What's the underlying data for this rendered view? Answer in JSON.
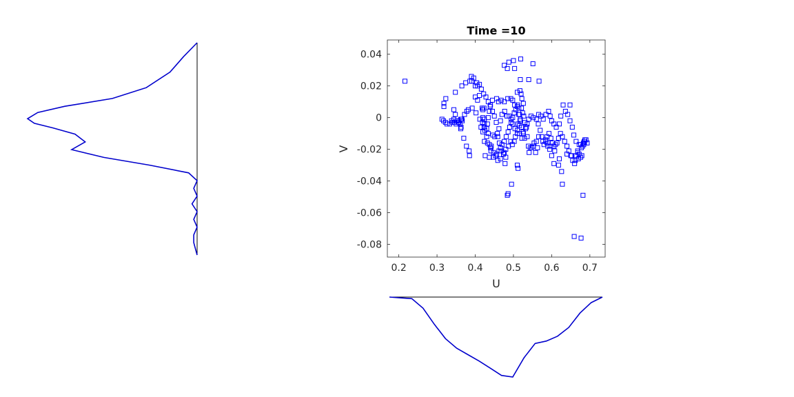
{
  "chart_data": [
    {
      "type": "scatter",
      "title": "Time =10",
      "xlabel": "U",
      "ylabel": "V",
      "xlim": [
        0.17,
        0.74
      ],
      "ylim": [
        -0.088,
        0.049
      ],
      "xticks": [
        "0.2",
        "0.3",
        "0.4",
        "0.5",
        "0.6",
        "0.7"
      ],
      "xtick_values": [
        0.2,
        0.3,
        0.4,
        0.5,
        0.6,
        0.7
      ],
      "yticks": [
        "-0.08",
        "-0.06",
        "-0.04",
        "-0.02",
        "0",
        "0.02",
        "0.04"
      ],
      "ytick_values": [
        -0.08,
        -0.06,
        -0.04,
        -0.02,
        0,
        0.02,
        0.04
      ],
      "marker": "square",
      "grid": false,
      "color": "#0000ff",
      "points": [
        [
          0.216,
          0.023
        ],
        [
          0.318,
          0.009
        ],
        [
          0.323,
          0.012
        ],
        [
          0.318,
          0.007
        ],
        [
          0.313,
          -0.001
        ],
        [
          0.317,
          -0.002
        ],
        [
          0.322,
          -0.003
        ],
        [
          0.326,
          -0.004
        ],
        [
          0.333,
          -0.004
        ],
        [
          0.34,
          -0.003
        ],
        [
          0.346,
          -0.003
        ],
        [
          0.35,
          -0.004
        ],
        [
          0.355,
          -0.003
        ],
        [
          0.358,
          -0.002
        ],
        [
          0.362,
          -0.001
        ],
        [
          0.364,
          -0.001
        ],
        [
          0.365,
          -0.001
        ],
        [
          0.362,
          -0.007
        ],
        [
          0.363,
          -0.006
        ],
        [
          0.37,
          -0.013
        ],
        [
          0.377,
          -0.018
        ],
        [
          0.384,
          -0.021
        ],
        [
          0.385,
          -0.024
        ],
        [
          0.348,
          0.016
        ],
        [
          0.365,
          0.02
        ],
        [
          0.375,
          0.022
        ],
        [
          0.386,
          0.023
        ],
        [
          0.391,
          0.023
        ],
        [
          0.39,
          0.026
        ],
        [
          0.396,
          0.025
        ],
        [
          0.4,
          0.02
        ],
        [
          0.406,
          0.02
        ],
        [
          0.344,
          0.005
        ],
        [
          0.348,
          0.002
        ],
        [
          0.378,
          0.004
        ],
        [
          0.4,
          0.013
        ],
        [
          0.406,
          0.011
        ],
        [
          0.411,
          0.014
        ],
        [
          0.418,
          0.006
        ],
        [
          0.42,
          0.005
        ],
        [
          0.423,
          0.006
        ],
        [
          0.42,
          0.0
        ],
        [
          0.424,
          -0.001
        ],
        [
          0.419,
          -0.003
        ],
        [
          0.424,
          -0.004
        ],
        [
          0.423,
          -0.006
        ],
        [
          0.425,
          -0.008
        ],
        [
          0.42,
          -0.009
        ],
        [
          0.43,
          -0.012
        ],
        [
          0.424,
          -0.015
        ],
        [
          0.437,
          -0.017
        ],
        [
          0.441,
          -0.021
        ],
        [
          0.442,
          -0.018
        ],
        [
          0.437,
          -0.025
        ],
        [
          0.426,
          -0.024
        ],
        [
          0.447,
          -0.025
        ],
        [
          0.453,
          -0.024
        ],
        [
          0.459,
          -0.027
        ],
        [
          0.466,
          -0.026
        ],
        [
          0.474,
          -0.023
        ],
        [
          0.478,
          -0.029
        ],
        [
          0.476,
          -0.022
        ],
        [
          0.48,
          -0.02
        ],
        [
          0.487,
          -0.018
        ],
        [
          0.493,
          -0.015
        ],
        [
          0.497,
          -0.017
        ],
        [
          0.502,
          -0.015
        ],
        [
          0.505,
          -0.012
        ],
        [
          0.51,
          -0.01
        ],
        [
          0.512,
          -0.004
        ],
        [
          0.516,
          -0.005
        ],
        [
          0.518,
          -0.001
        ],
        [
          0.516,
          0.002
        ],
        [
          0.514,
          0.006
        ],
        [
          0.51,
          0.007
        ],
        [
          0.503,
          0.008
        ],
        [
          0.498,
          0.011
        ],
        [
          0.493,
          0.012
        ],
        [
          0.485,
          0.012
        ],
        [
          0.476,
          0.01
        ],
        [
          0.468,
          0.011
        ],
        [
          0.461,
          0.01
        ],
        [
          0.456,
          0.012
        ],
        [
          0.445,
          0.011
        ],
        [
          0.44,
          0.008
        ],
        [
          0.437,
          0.004
        ],
        [
          0.434,
          0.0
        ],
        [
          0.432,
          -0.004
        ],
        [
          0.43,
          -0.007
        ],
        [
          0.434,
          -0.01
        ],
        [
          0.446,
          -0.011
        ],
        [
          0.451,
          -0.012
        ],
        [
          0.458,
          -0.01
        ],
        [
          0.462,
          -0.007
        ],
        [
          0.466,
          -0.002
        ],
        [
          0.47,
          0.002
        ],
        [
          0.477,
          0.004
        ],
        [
          0.483,
          0.001
        ],
        [
          0.489,
          0.001
        ],
        [
          0.494,
          -0.001
        ],
        [
          0.498,
          -0.004
        ],
        [
          0.504,
          -0.007
        ],
        [
          0.51,
          -0.008
        ],
        [
          0.516,
          -0.01
        ],
        [
          0.522,
          -0.013
        ],
        [
          0.526,
          -0.01
        ],
        [
          0.532,
          -0.007
        ],
        [
          0.536,
          -0.004
        ],
        [
          0.54,
          -0.001
        ],
        [
          0.546,
          0.001
        ],
        [
          0.552,
          0.0
        ],
        [
          0.56,
          -0.001
        ],
        [
          0.565,
          -0.004
        ],
        [
          0.57,
          -0.008
        ],
        [
          0.574,
          -0.012
        ],
        [
          0.577,
          -0.015
        ],
        [
          0.58,
          -0.017
        ],
        [
          0.584,
          -0.015
        ],
        [
          0.588,
          -0.012
        ],
        [
          0.593,
          -0.01
        ],
        [
          0.598,
          -0.013
        ],
        [
          0.602,
          -0.016
        ],
        [
          0.606,
          -0.018
        ],
        [
          0.61,
          -0.017
        ],
        [
          0.614,
          -0.016
        ],
        [
          0.618,
          -0.013
        ],
        [
          0.623,
          -0.01
        ],
        [
          0.628,
          -0.012
        ],
        [
          0.634,
          -0.015
        ],
        [
          0.64,
          -0.018
        ],
        [
          0.645,
          -0.021
        ],
        [
          0.65,
          -0.024
        ],
        [
          0.655,
          -0.027
        ],
        [
          0.66,
          -0.029
        ],
        [
          0.664,
          -0.024
        ],
        [
          0.668,
          -0.022
        ],
        [
          0.672,
          -0.023
        ],
        [
          0.676,
          -0.025
        ],
        [
          0.679,
          -0.024
        ],
        [
          0.681,
          -0.018
        ],
        [
          0.683,
          -0.016
        ],
        [
          0.685,
          -0.015
        ],
        [
          0.687,
          -0.014
        ],
        [
          0.682,
          -0.049
        ],
        [
          0.686,
          -0.016
        ],
        [
          0.676,
          -0.017
        ],
        [
          0.672,
          -0.017
        ],
        [
          0.668,
          -0.021
        ],
        [
          0.664,
          -0.015
        ],
        [
          0.658,
          -0.011
        ],
        [
          0.654,
          -0.006
        ],
        [
          0.648,
          -0.002
        ],
        [
          0.642,
          0.002
        ],
        [
          0.636,
          0.004
        ],
        [
          0.63,
          0.008
        ],
        [
          0.648,
          0.008
        ],
        [
          0.624,
          0.001
        ],
        [
          0.62,
          -0.004
        ],
        [
          0.612,
          -0.006
        ],
        [
          0.606,
          -0.004
        ],
        [
          0.6,
          -0.002
        ],
        [
          0.596,
          0.001
        ],
        [
          0.592,
          0.004
        ],
        [
          0.585,
          0.002
        ],
        [
          0.578,
          -0.001
        ],
        [
          0.572,
          0.001
        ],
        [
          0.566,
          0.002
        ],
        [
          0.62,
          -0.026
        ],
        [
          0.618,
          -0.03
        ],
        [
          0.626,
          -0.034
        ],
        [
          0.628,
          -0.042
        ],
        [
          0.606,
          -0.029
        ],
        [
          0.6,
          -0.024
        ],
        [
          0.595,
          -0.02
        ],
        [
          0.59,
          -0.018
        ],
        [
          0.588,
          -0.016
        ],
        [
          0.54,
          0.024
        ],
        [
          0.551,
          0.034
        ],
        [
          0.567,
          0.023
        ],
        [
          0.519,
          0.037
        ],
        [
          0.5,
          0.036
        ],
        [
          0.488,
          0.035
        ],
        [
          0.476,
          0.033
        ],
        [
          0.484,
          0.031
        ],
        [
          0.503,
          0.031
        ],
        [
          0.518,
          0.024
        ],
        [
          0.51,
          0.016
        ],
        [
          0.517,
          0.017
        ],
        [
          0.52,
          0.015
        ],
        [
          0.522,
          0.012
        ],
        [
          0.526,
          0.009
        ],
        [
          0.521,
          0.006
        ],
        [
          0.524,
          0.003
        ],
        [
          0.527,
          0.001
        ],
        [
          0.53,
          -0.003
        ],
        [
          0.534,
          -0.006
        ],
        [
          0.536,
          -0.012
        ],
        [
          0.539,
          -0.018
        ],
        [
          0.541,
          -0.022
        ],
        [
          0.552,
          -0.018
        ],
        [
          0.56,
          -0.015
        ],
        [
          0.563,
          -0.019
        ],
        [
          0.558,
          -0.022
        ],
        [
          0.548,
          -0.019
        ],
        [
          0.51,
          -0.03
        ],
        [
          0.512,
          -0.032
        ],
        [
          0.495,
          -0.042
        ],
        [
          0.486,
          -0.048
        ],
        [
          0.484,
          -0.049
        ],
        [
          0.48,
          -0.025
        ],
        [
          0.474,
          -0.023
        ],
        [
          0.468,
          -0.021
        ],
        [
          0.463,
          -0.016
        ],
        [
          0.459,
          -0.012
        ],
        [
          0.455,
          -0.003
        ],
        [
          0.45,
          0.001
        ],
        [
          0.445,
          0.004
        ],
        [
          0.439,
          0.007
        ],
        [
          0.434,
          0.01
        ],
        [
          0.428,
          0.013
        ],
        [
          0.422,
          0.015
        ],
        [
          0.416,
          0.018
        ],
        [
          0.411,
          0.021
        ],
        [
          0.404,
          0.022
        ],
        [
          0.659,
          -0.075
        ],
        [
          0.677,
          -0.076
        ],
        [
          0.456,
          -0.023
        ],
        [
          0.462,
          -0.021
        ],
        [
          0.466,
          -0.019
        ],
        [
          0.47,
          -0.017
        ],
        [
          0.476,
          -0.015
        ],
        [
          0.481,
          -0.012
        ],
        [
          0.486,
          -0.009
        ],
        [
          0.49,
          -0.006
        ],
        [
          0.494,
          -0.003
        ],
        [
          0.498,
          0.0
        ],
        [
          0.502,
          0.003
        ],
        [
          0.506,
          0.005
        ],
        [
          0.511,
          0.008
        ],
        [
          0.514,
          0.002
        ],
        [
          0.517,
          -0.002
        ],
        [
          0.521,
          -0.006
        ],
        [
          0.525,
          -0.009
        ],
        [
          0.529,
          -0.013
        ],
        [
          0.544,
          -0.019
        ],
        [
          0.554,
          -0.016
        ],
        [
          0.566,
          -0.012
        ],
        [
          0.584,
          -0.014
        ],
        [
          0.596,
          -0.018
        ],
        [
          0.608,
          -0.021
        ],
        [
          0.64,
          -0.023
        ],
        [
          0.652,
          -0.024
        ],
        [
          0.662,
          -0.027
        ],
        [
          0.67,
          -0.026
        ],
        [
          0.678,
          -0.019
        ],
        [
          0.684,
          -0.017
        ],
        [
          0.69,
          -0.014
        ],
        [
          0.693,
          -0.016
        ],
        [
          0.338,
          -0.002
        ],
        [
          0.344,
          -0.001
        ],
        [
          0.352,
          -0.002
        ],
        [
          0.356,
          -0.003
        ],
        [
          0.36,
          -0.004
        ],
        [
          0.366,
          -0.002
        ],
        [
          0.372,
          0.002
        ],
        [
          0.382,
          0.005
        ],
        [
          0.392,
          0.006
        ],
        [
          0.402,
          0.003
        ],
        [
          0.412,
          -0.001
        ],
        [
          0.415,
          -0.006
        ],
        [
          0.432,
          -0.016
        ],
        [
          0.44,
          -0.019
        ],
        [
          0.448,
          -0.022
        ]
      ]
    },
    {
      "type": "line",
      "description_role": "marginal density of U (shown below the scatter plot, drawn downward)",
      "axis": "U",
      "x": [
        0.17,
        0.2,
        0.23,
        0.26,
        0.29,
        0.32,
        0.35,
        0.38,
        0.41,
        0.44,
        0.47,
        0.5,
        0.53,
        0.56,
        0.59,
        0.62,
        0.65,
        0.68,
        0.71,
        0.74
      ],
      "values": [
        0.0,
        0.01,
        0.02,
        0.14,
        0.34,
        0.52,
        0.64,
        0.72,
        0.8,
        0.89,
        0.98,
        1.0,
        0.76,
        0.58,
        0.55,
        0.49,
        0.38,
        0.2,
        0.07,
        0.0
      ]
    },
    {
      "type": "line",
      "description_role": "marginal density of V (shown left of the scatter plot, drawn leftward)",
      "axis": "V",
      "y": [
        0.049,
        0.04,
        0.03,
        0.02,
        0.013,
        0.008,
        0.004,
        0.0,
        -0.003,
        -0.006,
        -0.01,
        -0.015,
        -0.02,
        -0.025,
        -0.03,
        -0.035,
        -0.04,
        -0.045,
        -0.05,
        -0.055,
        -0.06,
        -0.065,
        -0.07,
        -0.075,
        -0.08,
        -0.088
      ],
      "values": [
        0.0,
        0.08,
        0.16,
        0.3,
        0.5,
        0.78,
        0.94,
        1.0,
        0.96,
        0.85,
        0.72,
        0.66,
        0.74,
        0.55,
        0.28,
        0.05,
        0.0,
        0.02,
        0.0,
        0.03,
        0.0,
        0.02,
        0.0,
        0.02,
        0.02,
        0.0
      ]
    }
  ]
}
